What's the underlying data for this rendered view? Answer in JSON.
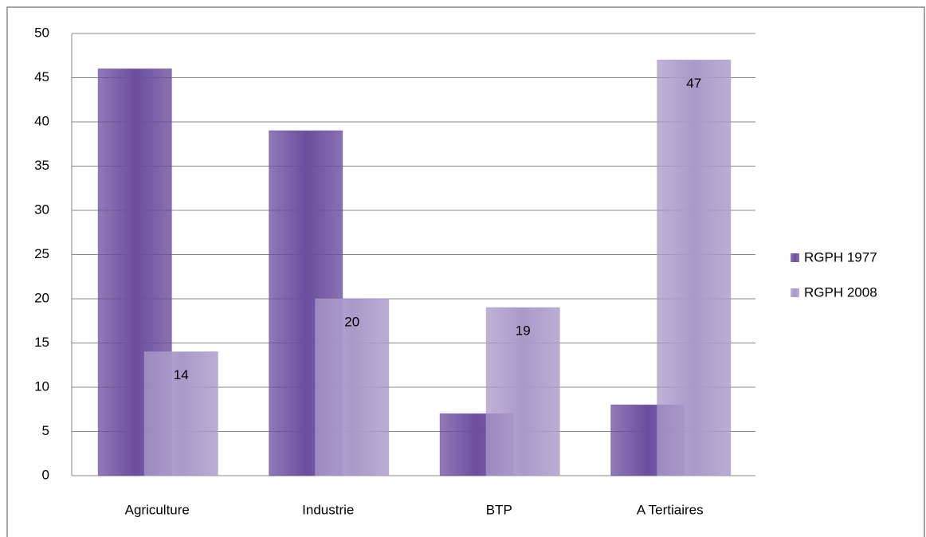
{
  "chart_data": {
    "type": "bar",
    "categories": [
      "Agriculture",
      "Industrie",
      "BTP",
      "A Tertiaires"
    ],
    "series": [
      {
        "name": "RGPH 1977",
        "color": "#6b4e9e",
        "values": [
          46,
          39,
          7,
          8
        ]
      },
      {
        "name": "RGPH 2008",
        "color": "#a999c9",
        "values": [
          14,
          20,
          19,
          47
        ]
      }
    ],
    "ylim": [
      0,
      50
    ],
    "yticks": [
      0,
      5,
      10,
      15,
      20,
      25,
      30,
      35,
      40,
      45,
      50
    ],
    "grid": true,
    "legend": "right",
    "data_labels_series": [
      1
    ]
  }
}
